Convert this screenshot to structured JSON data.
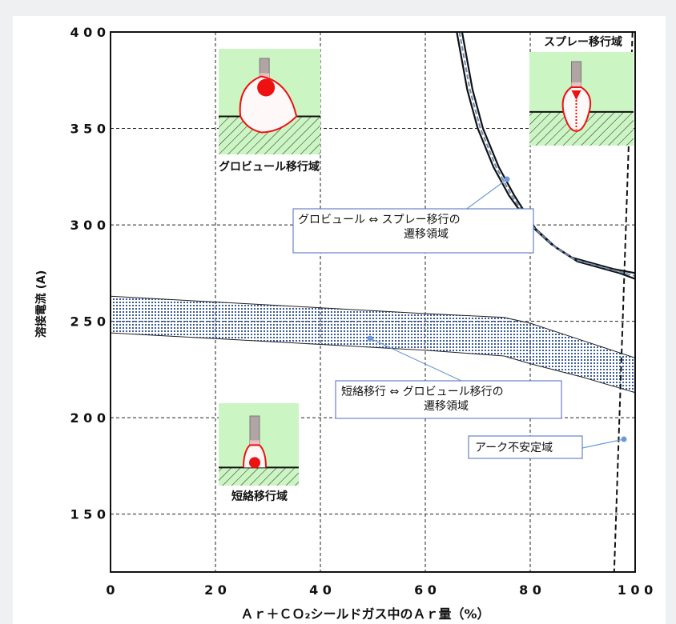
{
  "chart_data": {
    "type": "line",
    "title": "",
    "xlabel": "Ａｒ＋ＣＯ₂シールドガス中のＡｒ量（%）",
    "ylabel": "溶接電流 (A)",
    "xlim": [
      0,
      100
    ],
    "ylim": [
      120,
      400
    ],
    "x_ticks": [
      "0",
      "2 0",
      "4 0",
      "6 0",
      "8 0",
      "1 0 0"
    ],
    "y_ticks": [
      "4 0 0",
      "3 5 0",
      "3 0 0",
      "2 5 0",
      "2 0 0",
      "1 5 0"
    ],
    "grid": true,
    "bands": [
      {
        "name": "短絡移行 ⇔ グロビュール移行の遷移領域",
        "upper": [
          [
            0,
            263
          ],
          [
            20,
            260
          ],
          [
            40,
            257
          ],
          [
            60,
            254
          ],
          [
            75,
            252
          ],
          [
            80,
            249
          ],
          [
            90,
            240
          ],
          [
            100,
            231
          ]
        ],
        "lower": [
          [
            0,
            244
          ],
          [
            20,
            241
          ],
          [
            40,
            238
          ],
          [
            60,
            235
          ],
          [
            75,
            232
          ],
          [
            80,
            228
          ],
          [
            90,
            221
          ],
          [
            100,
            213
          ]
        ]
      },
      {
        "name": "グロビュール ⇔ スプレー移行の遷移領域",
        "outer": [
          [
            66,
            400
          ],
          [
            68,
            370
          ],
          [
            70,
            350
          ],
          [
            73,
            330
          ],
          [
            76,
            315
          ],
          [
            80,
            300
          ],
          [
            84,
            290
          ],
          [
            88,
            283
          ],
          [
            92,
            280
          ],
          [
            96,
            277
          ],
          [
            100,
            275
          ]
        ],
        "inner": [
          [
            67,
            400
          ],
          [
            69,
            370
          ],
          [
            71,
            350
          ],
          [
            74,
            330
          ],
          [
            77,
            315
          ],
          [
            81,
            298
          ],
          [
            85,
            288
          ],
          [
            89,
            281
          ],
          [
            93,
            278
          ],
          [
            97,
            275
          ],
          [
            100,
            272
          ]
        ]
      }
    ],
    "boundary_dashed": [
      [
        99.5,
        400
      ],
      [
        96,
        120
      ]
    ],
    "annotations": {
      "globule_spray": [
        "グロビュール ⇔ スプレー移行の",
        "遷移領域"
      ],
      "short_globule": [
        "短絡移行 ⇔ グロビュール移行の",
        "遷移領域"
      ],
      "arc_unstable": "アーク不安定域"
    },
    "region_labels": {
      "globule": "グロビュール移行域",
      "spray": "スプレー移行域",
      "short": "短絡移行域"
    }
  },
  "colors": {
    "region_bg": "#ccf5c4",
    "droplet": "#ee1111",
    "band_dots": "#3a5a9a",
    "callout_border": "#6a82c9",
    "leader": "#6a9ad8"
  },
  "icons": [
    "globule-transfer-icon",
    "spray-transfer-icon",
    "short-circuit-transfer-icon"
  ]
}
